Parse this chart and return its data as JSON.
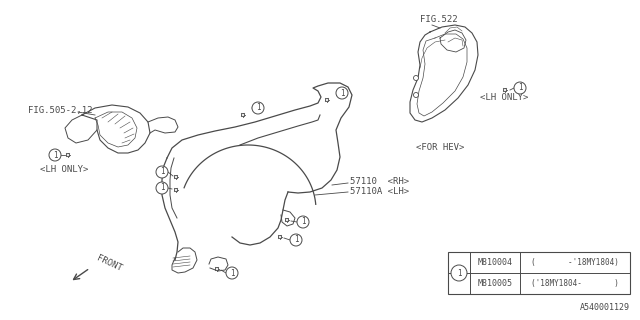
{
  "bg_color": "#ffffff",
  "line_color": "#4a4a4a",
  "fig_ref1": "FIG.505-2,12",
  "fig_ref2": "FIG.522",
  "lh_only1": "<LH ONLY>",
  "lh_only2": "<LH ONLY>",
  "for_hev": "<FOR HEV>",
  "part1_rh": "57110  <RH>",
  "part1_lh": "57110A <LH>",
  "front_label": "FRONT",
  "table_parts": [
    {
      "num": "M810004",
      "desc": "(       -'18MY1804)"
    },
    {
      "num": "M810005",
      "desc": "('18MY1804-       )"
    }
  ],
  "fig_id": "A540001129",
  "fs": 6.5
}
